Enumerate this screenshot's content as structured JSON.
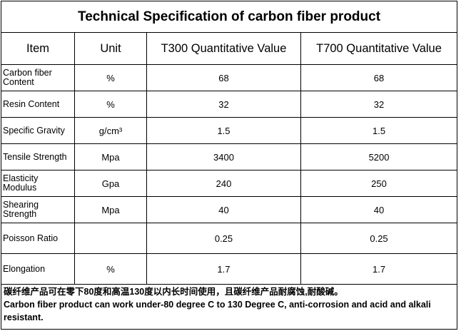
{
  "title": "Technical Specification of carbon fiber product",
  "headers": {
    "item": "Item",
    "unit": "Unit",
    "t300": "T300 Quantitative Value",
    "t700": "T700 Quantitative Value"
  },
  "rows": [
    {
      "item": "Carbon fiber Content",
      "unit": "%",
      "t300": "68",
      "t700": "68"
    },
    {
      "item": "Resin Content",
      "unit": "%",
      "t300": "32",
      "t700": "32"
    },
    {
      "item": "Specific Gravity",
      "unit": "g/cm³",
      "t300": "1.5",
      "t700": "1.5"
    },
    {
      "item": "Tensile Strength",
      "unit": "Mpa",
      "t300": "3400",
      "t700": "5200"
    },
    {
      "item": "Elasticity Modulus",
      "unit": "Gpa",
      "t300": "240",
      "t700": "250"
    },
    {
      "item": "Shearing Strength",
      "unit": "Mpa",
      "t300": "40",
      "t700": "40"
    },
    {
      "item": "Poisson Ratio",
      "unit": "",
      "t300": "0.25",
      "t700": "0.25"
    },
    {
      "item": "Elongation",
      "unit": "%",
      "t300": "1.7",
      "t700": "1.7"
    }
  ],
  "notes": {
    "chinese": "碳纤维产品可在零下80度和高温130度以内长时间使用，且碳纤维产品耐腐蚀,耐酸碱。",
    "english": "Carbon fiber product can work under-80 degree C to 130 Degree C,  anti-corrosion and acid and alkali resistant."
  }
}
